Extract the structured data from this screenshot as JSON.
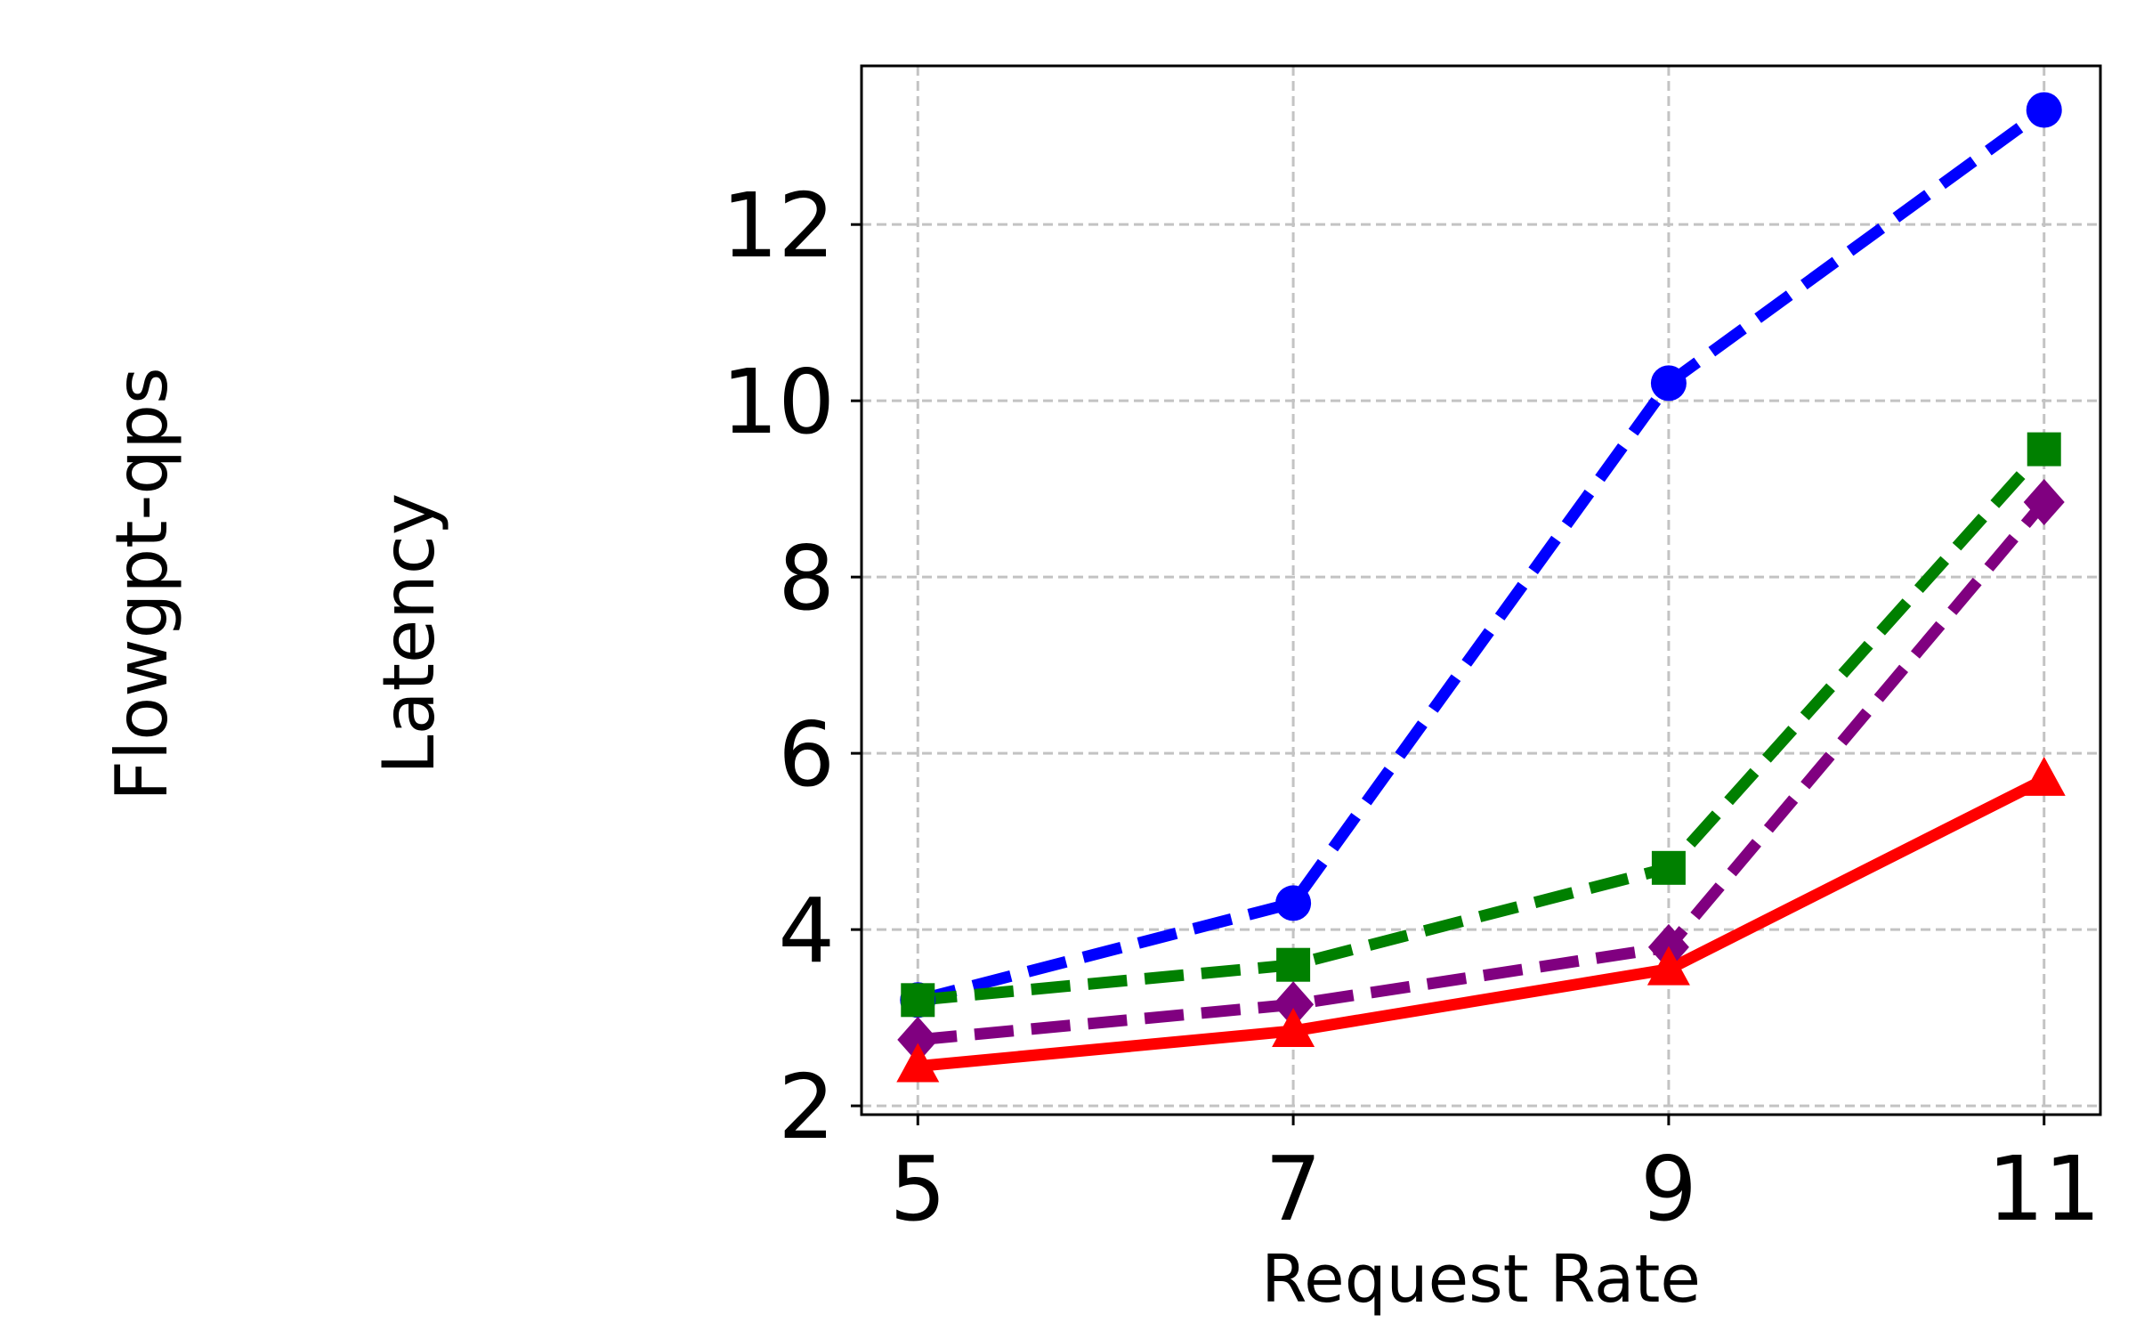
{
  "row_label": "Flowgpt-qps",
  "metric_label": "Latency",
  "chart_data": {
    "type": "line",
    "title": "",
    "xlabel": "Request Rate",
    "ylabel": "",
    "x": [
      5,
      7,
      9,
      11
    ],
    "xticks": [
      "5",
      "7",
      "9",
      "11"
    ],
    "yticks": [
      "2",
      "4",
      "6",
      "8",
      "10",
      "12"
    ],
    "xlim": [
      4.7,
      11.3
    ],
    "ylim": [
      1.9,
      13.8
    ],
    "grid": true,
    "legend": "none",
    "series": [
      {
        "values": [
          3.2,
          4.3,
          10.2,
          13.3
        ],
        "color": "#0000ff",
        "marker": "circle",
        "dashed": true
      },
      {
        "values": [
          3.2,
          3.6,
          4.7,
          9.45
        ],
        "color": "#008000",
        "marker": "square",
        "dashed": true
      },
      {
        "values": [
          2.75,
          3.15,
          3.8,
          8.85
        ],
        "color": "#800080",
        "marker": "diamond",
        "dashed": true
      },
      {
        "values": [
          2.45,
          2.85,
          3.55,
          5.7
        ],
        "color": "#ff0000",
        "marker": "triangle",
        "dashed": false
      }
    ]
  }
}
